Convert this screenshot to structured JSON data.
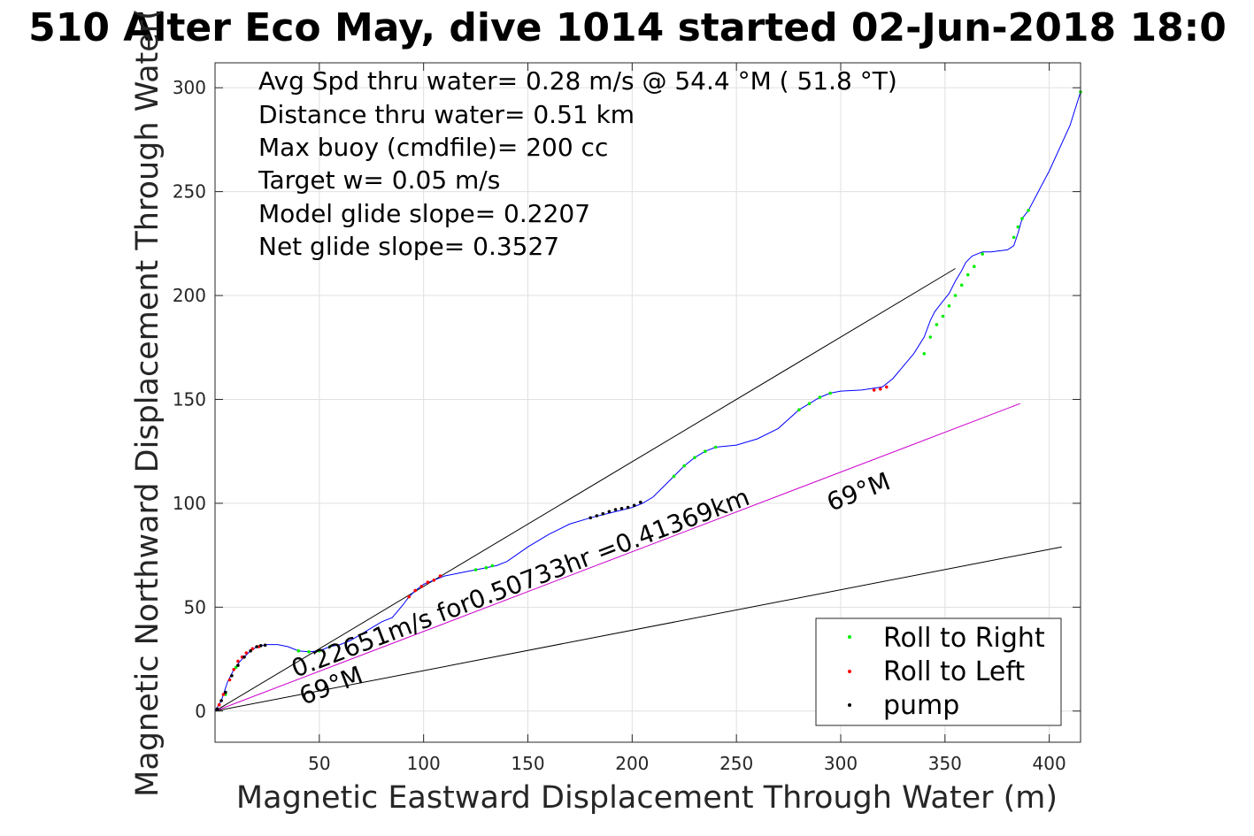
{
  "chart_data": {
    "type": "line",
    "title": "510 Alter Eco May, dive 1014 started 02-Jun-2018 18:0",
    "xlabel": "Magnetic Eastward Displacement Through Water (m)",
    "ylabel": "Magnetic Northward Displacement Through Water(",
    "xlim": [
      0,
      415
    ],
    "ylim": [
      -15,
      312
    ],
    "xticks": [
      50,
      100,
      150,
      200,
      250,
      300,
      350,
      400
    ],
    "yticks": [
      0,
      50,
      100,
      150,
      200,
      250,
      300
    ],
    "grid": true,
    "legend_position": "bottom-right",
    "stats_lines": [
      "Avg Spd thru water=  0.28 m/s @  54.4 °M ( 51.8 °T)",
      "Distance thru water=  0.51 km",
      "Max buoy (cmdfile)= 200 cc",
      "Target w= 0.05 m/s",
      "Model glide slope= 0.2207",
      "Net glide slope= 0.3527"
    ],
    "annotations": {
      "vector_label": "0.22651m/s for0.50733hr =0.41369km",
      "heading_label_near": "69°M",
      "heading_label_far": "69°M"
    },
    "colors": {
      "track": "#0000ff",
      "heading_line": "#cc00cc",
      "reference_lines": "#000000",
      "roll_right": "#00ee00",
      "roll_left": "#ff0000",
      "pump": "#000000",
      "grid": "#e0e0e0"
    },
    "series": [
      {
        "name": "track",
        "kind": "line",
        "x": [
          0,
          3,
          6,
          9,
          12,
          16,
          20,
          25,
          30,
          35,
          40,
          45,
          50,
          55,
          60,
          65,
          70,
          75,
          80,
          85,
          90,
          93,
          96,
          100,
          105,
          110,
          115,
          120,
          125,
          130,
          135,
          140,
          150,
          160,
          170,
          180,
          190,
          200,
          205,
          210,
          215,
          220,
          225,
          230,
          235,
          240,
          250,
          260,
          270,
          280,
          285,
          290,
          295,
          300,
          310,
          320,
          325,
          330,
          335,
          340,
          343,
          345,
          348,
          352,
          355,
          358,
          360,
          363,
          368,
          372,
          380,
          383,
          385,
          387,
          390,
          400,
          410,
          415
        ],
        "y": [
          0,
          5,
          14,
          20,
          24,
          28,
          31,
          32,
          32,
          31,
          29,
          28.5,
          29,
          31,
          32,
          34,
          37,
          40,
          43,
          45,
          51,
          55,
          58,
          61,
          63,
          65,
          66,
          67,
          68,
          69,
          70,
          72,
          79,
          85,
          90,
          93,
          95.5,
          98,
          100,
          103,
          108,
          113,
          118,
          122,
          125,
          127,
          128,
          131,
          136,
          145,
          148,
          151,
          153,
          154,
          154.5,
          156,
          160,
          166,
          172,
          180,
          188,
          192,
          196,
          201,
          207,
          212,
          216,
          219,
          221,
          221,
          222,
          224,
          230,
          237,
          241,
          260,
          282,
          298
        ]
      },
      {
        "name": "Roll to Right",
        "kind": "points",
        "x": [
          5,
          10,
          40,
          45,
          50,
          55,
          125,
          130,
          133,
          220,
          225,
          230,
          235,
          240,
          280,
          285,
          290,
          295,
          340,
          343,
          346,
          349,
          352,
          355,
          358,
          361,
          364,
          368,
          383,
          385,
          387,
          390,
          415
        ],
        "y": [
          8,
          21,
          29,
          28.5,
          29,
          31,
          68,
          69,
          70,
          113,
          118,
          122,
          125,
          127,
          145,
          148,
          151,
          153,
          172,
          180,
          186,
          190,
          195,
          200,
          205,
          210,
          214,
          220,
          228,
          233,
          237,
          241,
          298
        ]
      },
      {
        "name": "Roll to Left",
        "kind": "points",
        "x": [
          2,
          4,
          7,
          9,
          11,
          13,
          15,
          18,
          21,
          93,
          96,
          99,
          102,
          105,
          108,
          316,
          319,
          322
        ],
        "y": [
          3,
          8,
          15,
          20,
          24,
          26,
          28,
          30,
          31,
          55,
          58,
          60,
          62,
          63,
          65,
          154.5,
          155,
          156
        ]
      },
      {
        "name": "pump",
        "kind": "points",
        "x": [
          1,
          3,
          5,
          8,
          11,
          14,
          17,
          20,
          22,
          24,
          180,
          183,
          186,
          189,
          192,
          195,
          198,
          201,
          204
        ],
        "y": [
          1,
          5,
          9,
          17,
          22,
          26,
          29,
          31,
          31.5,
          31.7,
          93,
          94,
          95,
          96,
          97,
          97.5,
          98,
          99,
          100.5
        ]
      },
      {
        "name": "net vector",
        "kind": "line",
        "x": [
          0,
          355
        ],
        "y": [
          0,
          213
        ]
      },
      {
        "name": "heading 69°M",
        "kind": "line",
        "x": [
          0,
          386
        ],
        "y": [
          0,
          148
        ]
      },
      {
        "name": "glide slope line",
        "kind": "line",
        "x": [
          0,
          406
        ],
        "y": [
          0,
          79
        ]
      }
    ],
    "legend": [
      {
        "label": "Roll to Right",
        "color": "#00ee00"
      },
      {
        "label": "Roll to Left",
        "color": "#ff0000"
      },
      {
        "label": "pump",
        "color": "#000000"
      }
    ]
  }
}
